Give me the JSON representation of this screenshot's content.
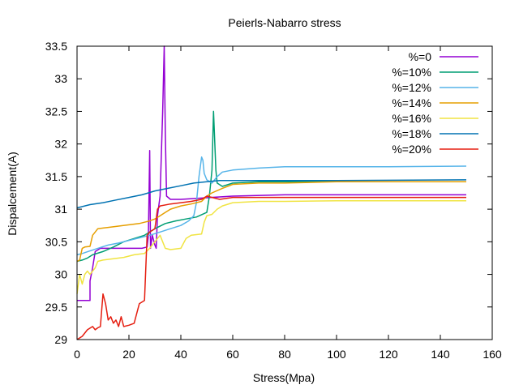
{
  "chart_data": {
    "type": "line",
    "title": "Peierls-Nabarro stress",
    "xlabel": "Stress(Mpa)",
    "ylabel": "Dispalcement(A)",
    "xlim": [
      0,
      160
    ],
    "ylim": [
      29,
      33.5
    ],
    "xticks": [
      0,
      20,
      40,
      60,
      80,
      100,
      120,
      140,
      160
    ],
    "yticks": [
      29,
      29.5,
      30,
      30.5,
      31,
      31.5,
      32,
      32.5,
      33,
      33.5
    ],
    "legend_position": "top-right",
    "series": [
      {
        "name": "%=0",
        "color": "#9400d3",
        "points": [
          [
            0,
            29.6
          ],
          [
            4,
            29.6
          ],
          [
            5,
            29.6
          ],
          [
            5,
            29.9
          ],
          [
            6,
            30.1
          ],
          [
            7,
            30.35
          ],
          [
            9,
            30.4
          ],
          [
            14,
            30.4
          ],
          [
            20,
            30.4
          ],
          [
            25,
            30.4
          ],
          [
            27,
            30.42
          ],
          [
            27.5,
            30.6
          ],
          [
            28,
            31.9
          ],
          [
            28.3,
            30.4
          ],
          [
            29,
            30.6
          ],
          [
            30,
            30.45
          ],
          [
            30.5,
            30.4
          ],
          [
            31,
            30.9
          ],
          [
            32,
            31.2
          ],
          [
            33,
            32.5
          ],
          [
            33.6,
            33.5
          ],
          [
            34,
            32.2
          ],
          [
            34.5,
            31.2
          ],
          [
            36,
            31.15
          ],
          [
            40,
            31.15
          ],
          [
            60,
            31.2
          ],
          [
            80,
            31.22
          ],
          [
            100,
            31.22
          ],
          [
            150,
            31.22
          ]
        ]
      },
      {
        "name": "%=10%",
        "color": "#009e73",
        "points": [
          [
            0,
            30.2
          ],
          [
            2,
            30.22
          ],
          [
            4,
            30.25
          ],
          [
            6,
            30.3
          ],
          [
            10,
            30.35
          ],
          [
            14,
            30.42
          ],
          [
            18,
            30.5
          ],
          [
            22,
            30.55
          ],
          [
            26,
            30.6
          ],
          [
            30,
            30.7
          ],
          [
            34,
            30.78
          ],
          [
            38,
            30.82
          ],
          [
            42,
            30.85
          ],
          [
            46,
            30.88
          ],
          [
            50,
            30.95
          ],
          [
            51,
            31.2
          ],
          [
            52,
            31.6
          ],
          [
            52.6,
            32.5
          ],
          [
            53,
            32.1
          ],
          [
            53.5,
            31.6
          ],
          [
            54,
            31.4
          ],
          [
            56,
            31.35
          ],
          [
            60,
            31.4
          ],
          [
            70,
            31.42
          ],
          [
            80,
            31.42
          ],
          [
            100,
            31.42
          ],
          [
            150,
            31.42
          ]
        ]
      },
      {
        "name": "%=12%",
        "color": "#56b4e9",
        "points": [
          [
            0,
            30.3
          ],
          [
            2,
            30.32
          ],
          [
            5,
            30.36
          ],
          [
            8,
            30.4
          ],
          [
            12,
            30.45
          ],
          [
            16,
            30.48
          ],
          [
            20,
            30.52
          ],
          [
            24,
            30.56
          ],
          [
            28,
            30.6
          ],
          [
            32,
            30.65
          ],
          [
            36,
            30.7
          ],
          [
            40,
            30.75
          ],
          [
            43,
            30.82
          ],
          [
            45,
            30.9
          ],
          [
            46,
            31.1
          ],
          [
            47,
            31.5
          ],
          [
            48,
            31.8
          ],
          [
            48.5,
            31.75
          ],
          [
            49,
            31.55
          ],
          [
            50,
            31.45
          ],
          [
            52,
            31.4
          ],
          [
            54,
            31.5
          ],
          [
            56,
            31.57
          ],
          [
            60,
            31.6
          ],
          [
            70,
            31.63
          ],
          [
            80,
            31.65
          ],
          [
            100,
            31.65
          ],
          [
            120,
            31.65
          ],
          [
            150,
            31.66
          ]
        ]
      },
      {
        "name": "%=14%",
        "color": "#e69f00",
        "points": [
          [
            0,
            30.2
          ],
          [
            1,
            30.22
          ],
          [
            2,
            30.4
          ],
          [
            3,
            30.42
          ],
          [
            5,
            30.43
          ],
          [
            6,
            30.6
          ],
          [
            7,
            30.65
          ],
          [
            8,
            30.7
          ],
          [
            12,
            30.72
          ],
          [
            16,
            30.74
          ],
          [
            20,
            30.76
          ],
          [
            24,
            30.78
          ],
          [
            26,
            30.8
          ],
          [
            28,
            30.82
          ],
          [
            30,
            30.85
          ],
          [
            32,
            30.9
          ],
          [
            34,
            30.95
          ],
          [
            36,
            31.0
          ],
          [
            40,
            31.05
          ],
          [
            44,
            31.08
          ],
          [
            48,
            31.12
          ],
          [
            50,
            31.2
          ],
          [
            52,
            31.25
          ],
          [
            56,
            31.32
          ],
          [
            60,
            31.38
          ],
          [
            70,
            31.4
          ],
          [
            80,
            31.4
          ],
          [
            100,
            31.42
          ],
          [
            150,
            31.42
          ]
        ]
      },
      {
        "name": "%=16%",
        "color": "#f0e442",
        "points": [
          [
            0,
            29.7
          ],
          [
            1,
            30.0
          ],
          [
            2,
            29.85
          ],
          [
            3,
            30.0
          ],
          [
            4,
            30.05
          ],
          [
            5,
            30.0
          ],
          [
            6,
            30.05
          ],
          [
            7,
            30.1
          ],
          [
            8,
            30.2
          ],
          [
            10,
            30.22
          ],
          [
            14,
            30.24
          ],
          [
            18,
            30.26
          ],
          [
            22,
            30.3
          ],
          [
            26,
            30.32
          ],
          [
            28,
            30.4
          ],
          [
            30,
            30.5
          ],
          [
            32,
            30.6
          ],
          [
            34,
            30.4
          ],
          [
            36,
            30.38
          ],
          [
            40,
            30.4
          ],
          [
            42,
            30.55
          ],
          [
            44,
            30.6
          ],
          [
            48,
            30.62
          ],
          [
            49,
            30.8
          ],
          [
            50,
            30.9
          ],
          [
            52,
            30.92
          ],
          [
            54,
            31.0
          ],
          [
            56,
            31.05
          ],
          [
            60,
            31.1
          ],
          [
            70,
            31.12
          ],
          [
            80,
            31.12
          ],
          [
            100,
            31.13
          ],
          [
            150,
            31.13
          ]
        ]
      },
      {
        "name": "%=18%",
        "color": "#0072b2",
        "points": [
          [
            0,
            31.02
          ],
          [
            5,
            31.07
          ],
          [
            10,
            31.1
          ],
          [
            15,
            31.14
          ],
          [
            20,
            31.18
          ],
          [
            25,
            31.22
          ],
          [
            30,
            31.28
          ],
          [
            35,
            31.32
          ],
          [
            40,
            31.36
          ],
          [
            45,
            31.4
          ],
          [
            50,
            31.42
          ],
          [
            55,
            31.44
          ],
          [
            60,
            31.44
          ],
          [
            80,
            31.44
          ],
          [
            100,
            31.44
          ],
          [
            150,
            31.45
          ]
        ]
      },
      {
        "name": "%=20%",
        "color": "#e51e10",
        "points": [
          [
            0,
            29.0
          ],
          [
            2,
            29.05
          ],
          [
            4,
            29.15
          ],
          [
            6,
            29.2
          ],
          [
            7,
            29.15
          ],
          [
            8,
            29.18
          ],
          [
            9,
            29.2
          ],
          [
            10,
            29.7
          ],
          [
            11,
            29.55
          ],
          [
            12,
            29.3
          ],
          [
            13,
            29.35
          ],
          [
            14,
            29.25
          ],
          [
            15,
            29.3
          ],
          [
            16,
            29.2
          ],
          [
            17,
            29.35
          ],
          [
            18,
            29.2
          ],
          [
            20,
            29.22
          ],
          [
            22,
            29.25
          ],
          [
            23,
            29.4
          ],
          [
            24,
            29.55
          ],
          [
            26,
            29.6
          ],
          [
            27,
            30.6
          ],
          [
            28,
            30.65
          ],
          [
            30,
            30.7
          ],
          [
            31,
            31.0
          ],
          [
            32,
            31.05
          ],
          [
            36,
            31.08
          ],
          [
            40,
            31.1
          ],
          [
            44,
            31.12
          ],
          [
            48,
            31.15
          ],
          [
            50,
            31.2
          ],
          [
            55,
            31.15
          ],
          [
            60,
            31.18
          ],
          [
            70,
            31.18
          ],
          [
            80,
            31.18
          ],
          [
            100,
            31.18
          ],
          [
            150,
            31.18
          ]
        ]
      }
    ]
  }
}
